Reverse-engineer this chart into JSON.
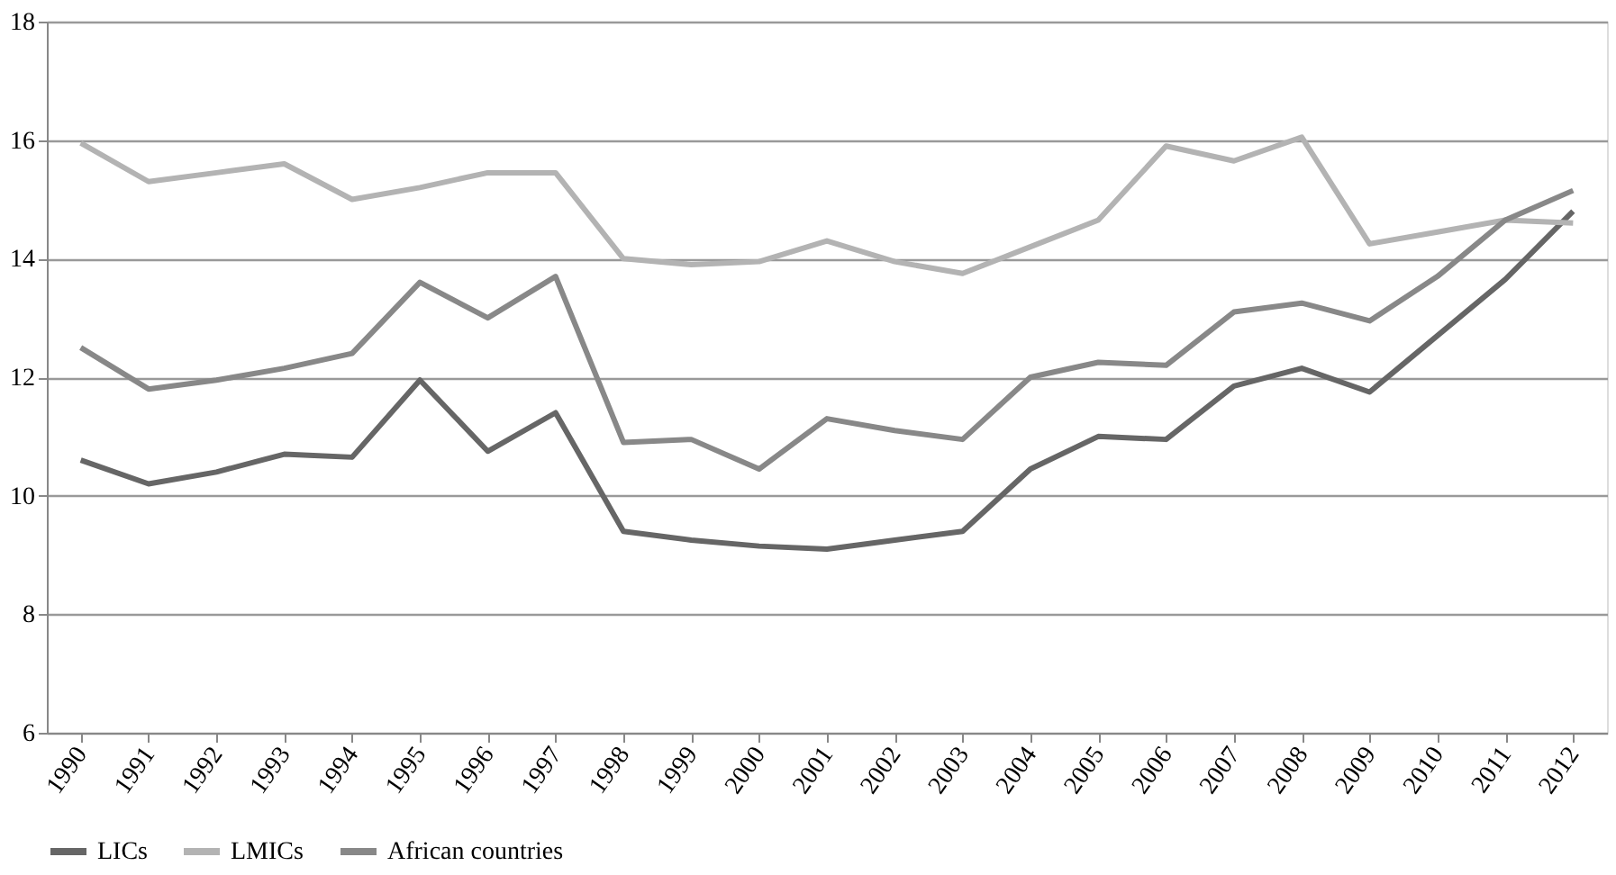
{
  "chart_data": {
    "type": "line",
    "categories": [
      "1990",
      "1991",
      "1992",
      "1993",
      "1994",
      "1995",
      "1996",
      "1997",
      "1998",
      "1999",
      "2000",
      "2001",
      "2002",
      "2003",
      "2004",
      "2005",
      "2006",
      "2007",
      "2008",
      "2009",
      "2010",
      "2011",
      "2012"
    ],
    "ylim": [
      6,
      18
    ],
    "yticks": [
      6,
      8,
      10,
      12,
      14,
      16,
      18
    ],
    "grid": "y",
    "legend": "bottom",
    "marker": "none",
    "line_style": "solid",
    "series": [
      {
        "name": "LICs",
        "color": "#666666",
        "values": [
          10.6,
          10.2,
          10.4,
          10.7,
          10.65,
          11.95,
          10.75,
          11.4,
          9.4,
          9.25,
          9.15,
          9.1,
          9.25,
          9.4,
          10.45,
          11.0,
          10.95,
          11.85,
          12.15,
          11.75,
          12.7,
          13.65,
          14.8
        ]
      },
      {
        "name": "LMICs",
        "color": "#b3b3b3",
        "values": [
          15.95,
          15.3,
          15.45,
          15.6,
          15.0,
          15.2,
          15.45,
          15.45,
          14.0,
          13.9,
          13.95,
          14.3,
          13.95,
          13.75,
          14.2,
          14.65,
          15.9,
          15.65,
          16.05,
          14.25,
          14.45,
          14.65,
          14.6
        ]
      },
      {
        "name": "African countries",
        "color": "#888888",
        "values": [
          12.5,
          11.8,
          11.95,
          12.15,
          12.4,
          13.6,
          13.0,
          13.7,
          10.9,
          10.95,
          10.45,
          11.3,
          11.1,
          10.95,
          12.0,
          12.25,
          12.2,
          13.1,
          13.25,
          12.95,
          13.7,
          14.65,
          15.15
        ]
      }
    ]
  }
}
